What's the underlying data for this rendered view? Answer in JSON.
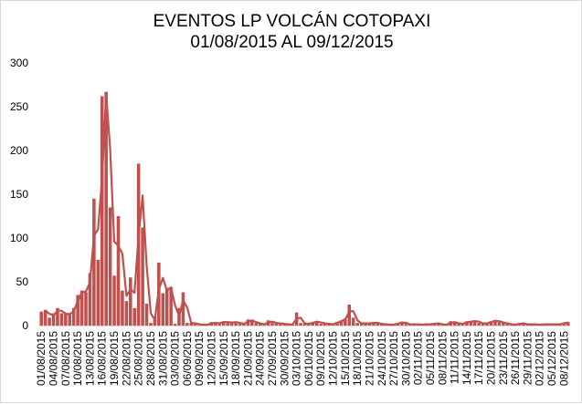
{
  "chart_data": {
    "type": "bar",
    "title_line1": "EVENTOS LP  VOLCÁN COTOPAXI",
    "title_line2": "01/08/2015 AL 09/12/2015",
    "xlabel": "",
    "ylabel": "",
    "ylim": [
      0,
      300
    ],
    "yticks": [
      "0",
      "50",
      "100",
      "150",
      "200",
      "250",
      "300"
    ],
    "grid": false,
    "bar_color": "#C0504D",
    "line_color": "#C0504D",
    "line_type": "2-point moving average",
    "start_date": "01/08/2015",
    "end_date": "09/12/2015",
    "xtick_labels": [
      "01/08/2015",
      "04/08/2015",
      "07/08/2015",
      "10/08/2015",
      "13/08/2015",
      "16/08/2015",
      "19/08/2015",
      "22/08/2015",
      "25/08/2015",
      "28/08/2015",
      "31/08/2015",
      "03/09/2015",
      "06/09/2015",
      "09/09/2015",
      "12/09/2015",
      "15/09/2015",
      "18/09/2015",
      "21/09/2015",
      "24/09/2015",
      "27/09/2015",
      "30/09/2015",
      "03/10/2015",
      "06/10/2015",
      "09/10/2015",
      "12/10/2015",
      "15/10/2015",
      "18/10/2015",
      "21/10/2015",
      "24/10/2015",
      "27/10/2015",
      "30/10/2015",
      "02/11/2015",
      "05/11/2015",
      "08/11/2015",
      "11/11/2015",
      "14/11/2015",
      "17/11/2015",
      "20/11/2015",
      "23/11/2015",
      "26/11/2015",
      "29/11/2015",
      "02/12/2015",
      "05/12/2015",
      "08/12/2015"
    ],
    "values": [
      16,
      18,
      9,
      14,
      20,
      14,
      13,
      13,
      20,
      35,
      40,
      38,
      60,
      145,
      75,
      262,
      267,
      135,
      57,
      125,
      40,
      28,
      55,
      20,
      185,
      112,
      25,
      3,
      10,
      72,
      37,
      43,
      44,
      2,
      20,
      38,
      3,
      3,
      2,
      1,
      1,
      1,
      4,
      2,
      3,
      5,
      3,
      4,
      4,
      2,
      2,
      7,
      5,
      3,
      2,
      1,
      6,
      3,
      3,
      2,
      2,
      1,
      1,
      15,
      3,
      2,
      2,
      4,
      5,
      2,
      3,
      1,
      2,
      4,
      6,
      8,
      24,
      9,
      3,
      2,
      3,
      2,
      4,
      2,
      2,
      1,
      1,
      1,
      3,
      4,
      2,
      1,
      2,
      1,
      1,
      2,
      1,
      3,
      2,
      1,
      1,
      5,
      3,
      2,
      2,
      5,
      4,
      6,
      3,
      2,
      3,
      5,
      6,
      4,
      3,
      2,
      1,
      1,
      3,
      2,
      1,
      2,
      1,
      1,
      2,
      1,
      2,
      1,
      2,
      3,
      4
    ]
  }
}
